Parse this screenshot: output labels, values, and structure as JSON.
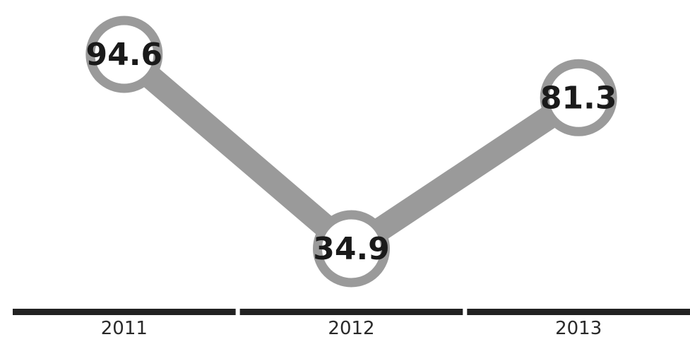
{
  "chart_data": {
    "type": "line",
    "categories": [
      "2011",
      "2012",
      "2013"
    ],
    "values": [
      94.6,
      34.9,
      81.3
    ],
    "value_labels": [
      "94.6",
      "34.9",
      "81.3"
    ],
    "title": "",
    "xlabel": "",
    "ylabel": "",
    "ylim": [
      34.9,
      94.6
    ],
    "grid": false,
    "legend": "none",
    "axis_visible": false
  },
  "colors": {
    "line": "#9a9a9a",
    "marker_ring": "#9a9a9a",
    "marker_fill": "#ffffff",
    "baseline": "#222222",
    "text": "#1a1a1a"
  }
}
